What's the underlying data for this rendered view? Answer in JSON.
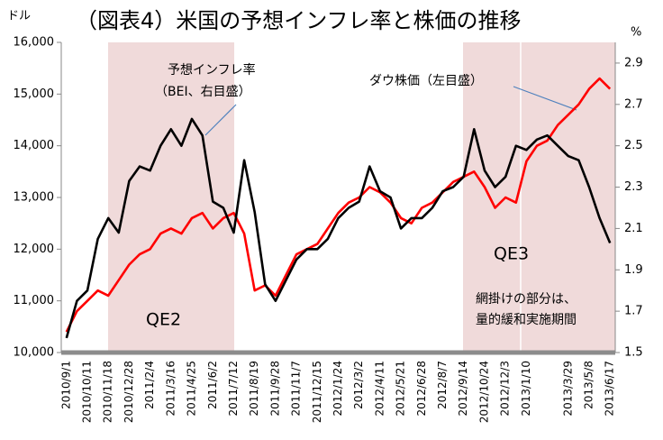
{
  "chart_data": {
    "type": "line",
    "title": "（図表4）米国の予想インフレ率と株価の推移",
    "y_label": "ドル",
    "y2_label": "%",
    "categories": [
      "2010/9/1",
      null,
      "2010/10/11",
      null,
      "2010/11/18",
      null,
      "2010/12/28",
      null,
      "2011/2/4",
      null,
      "2011/3/16",
      null,
      "2011/4/25",
      null,
      "2011/6/2",
      null,
      "2011/7/12",
      null,
      "2011/8/19",
      null,
      "2011/9/28",
      null,
      "2011/11/7",
      null,
      "2011/12/15",
      null,
      "2012/1/24",
      null,
      "2012/3/2",
      null,
      "2012/4/11",
      null,
      "2012/5/21",
      null,
      "2012/6/28",
      null,
      "2012/8/7",
      null,
      "2012/9/14",
      null,
      "2012/10/24",
      null,
      "2012/12/3",
      null,
      "2013/1/10",
      null,
      null,
      null,
      "2013/3/29",
      null,
      "2013/5/8",
      null,
      "2013/6/17"
    ],
    "series": [
      {
        "name": "予想インフレ率",
        "color": "#000000",
        "axis": "y2",
        "values": [
          1.57,
          1.75,
          1.8,
          2.05,
          2.15,
          2.08,
          2.33,
          2.4,
          2.38,
          2.5,
          2.58,
          2.5,
          2.63,
          2.55,
          2.23,
          2.2,
          2.08,
          2.43,
          2.18,
          1.83,
          1.75,
          1.85,
          1.95,
          2.0,
          2.0,
          2.05,
          2.15,
          2.2,
          2.23,
          2.4,
          2.28,
          2.25,
          2.1,
          2.15,
          2.15,
          2.2,
          2.28,
          2.3,
          2.35,
          2.58,
          2.38,
          2.3,
          2.35,
          2.5,
          2.48,
          2.53,
          2.55,
          2.5,
          2.45,
          2.43,
          2.3,
          2.15,
          2.03
        ]
      },
      {
        "name": "ダウ株価（左目盛）",
        "color": "#ff0000",
        "values": [
          10400,
          10800,
          11000,
          11200,
          11100,
          11400,
          11700,
          11900,
          12000,
          12300,
          12400,
          12300,
          12600,
          12700,
          12400,
          12600,
          12700,
          12300,
          11200,
          11300,
          11100,
          11500,
          11900,
          12000,
          12100,
          12400,
          12700,
          12900,
          13000,
          13200,
          13100,
          12900,
          12600,
          12500,
          12800,
          12900,
          13100,
          13300,
          13400,
          13500,
          13200,
          12800,
          13000,
          12900,
          13700,
          14000,
          14100,
          14400,
          14600,
          14800,
          15100,
          15300,
          15100
        ]
      }
    ],
    "annotations": [
      "（BEI、右目盛）"
    ],
    "shaded_labels": [
      "QE2",
      "QE3"
    ],
    "note": [
      "網掛けの部分は、",
      "量的緩和実施期間"
    ],
    "ylim": [
      10000,
      16000
    ],
    "yticks": [
      {
        "value": 10000,
        "label": "10,000"
      },
      {
        "value": 11000,
        "label": "11,000"
      },
      {
        "value": 12000,
        "label": "12,000"
      },
      {
        "value": 13000,
        "label": "13,000"
      },
      {
        "value": 14000,
        "label": "14,000"
      },
      {
        "value": 15000,
        "label": "15,000"
      },
      {
        "value": 16000,
        "label": "16,000"
      }
    ],
    "y2lim": [
      1.5,
      3.0
    ],
    "y2ticks": [
      1.5,
      1.7,
      1.9,
      2.1,
      2.3,
      2.5,
      2.7,
      2.9
    ],
    "grid": false
  }
}
